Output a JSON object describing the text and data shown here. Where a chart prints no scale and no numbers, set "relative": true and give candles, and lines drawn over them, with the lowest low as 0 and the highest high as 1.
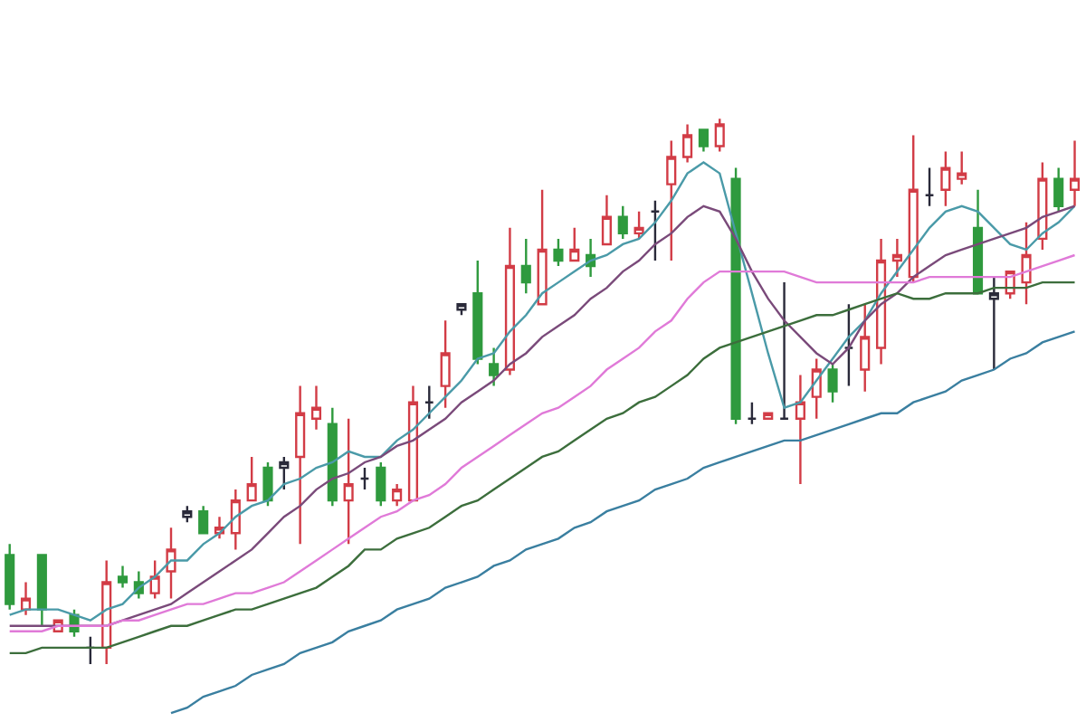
{
  "chart_data": {
    "type": "candlestick",
    "relative": true,
    "tick_labels": false,
    "categories": [
      null,
      null,
      null,
      null,
      null,
      null,
      null,
      null,
      null,
      null,
      null,
      null,
      null,
      null,
      null,
      null,
      null,
      null,
      null,
      null,
      null,
      null,
      null,
      null,
      null,
      null,
      null,
      null,
      null,
      null,
      null,
      null,
      null,
      null,
      null,
      null,
      null,
      null,
      null,
      null,
      null,
      null,
      null,
      null,
      null,
      null,
      null,
      null,
      null,
      null,
      null,
      null,
      null,
      null,
      null,
      null,
      null,
      null,
      null,
      null,
      null,
      null,
      null,
      null,
      null,
      null,
      null
    ],
    "ohlc": [
      [
        0.2,
        0.22,
        0.1,
        0.11
      ],
      [
        0.1,
        0.15,
        0.09,
        0.12
      ],
      [
        0.2,
        0.2,
        0.07,
        0.1
      ],
      [
        0.06,
        0.08,
        0.06,
        0.08
      ],
      [
        0.09,
        0.1,
        0.05,
        0.06
      ],
      [
        0.03,
        0.05,
        0.0,
        0.03
      ],
      [
        0.03,
        0.19,
        0.0,
        0.15
      ],
      [
        0.16,
        0.18,
        0.14,
        0.15
      ],
      [
        0.15,
        0.17,
        0.12,
        0.13
      ],
      [
        0.13,
        0.19,
        0.12,
        0.16
      ],
      [
        0.17,
        0.25,
        0.12,
        0.21
      ],
      [
        0.27,
        0.29,
        0.26,
        0.28
      ],
      [
        0.28,
        0.29,
        0.24,
        0.24
      ],
      [
        0.24,
        0.27,
        0.23,
        0.25
      ],
      [
        0.24,
        0.32,
        0.21,
        0.3
      ],
      [
        0.3,
        0.38,
        0.3,
        0.33
      ],
      [
        0.36,
        0.37,
        0.29,
        0.3
      ],
      [
        0.36,
        0.38,
        0.32,
        0.37
      ],
      [
        0.38,
        0.51,
        0.22,
        0.46
      ],
      [
        0.45,
        0.51,
        0.43,
        0.47
      ],
      [
        0.44,
        0.47,
        0.29,
        0.3
      ],
      [
        0.3,
        0.45,
        0.22,
        0.33
      ],
      [
        0.34,
        0.36,
        0.32,
        0.34
      ],
      [
        0.36,
        0.37,
        0.29,
        0.3
      ],
      [
        0.3,
        0.33,
        0.29,
        0.32
      ],
      [
        0.3,
        0.51,
        0.3,
        0.48
      ],
      [
        0.48,
        0.51,
        0.45,
        0.48
      ],
      [
        0.51,
        0.63,
        0.47,
        0.57
      ],
      [
        0.65,
        0.66,
        0.64,
        0.66
      ],
      [
        0.68,
        0.74,
        0.55,
        0.56
      ],
      [
        0.55,
        0.58,
        0.51,
        0.53
      ],
      [
        0.54,
        0.8,
        0.53,
        0.73
      ],
      [
        0.73,
        0.78,
        0.68,
        0.7
      ],
      [
        0.66,
        0.87,
        0.66,
        0.76
      ],
      [
        0.76,
        0.78,
        0.73,
        0.74
      ],
      [
        0.74,
        0.8,
        0.74,
        0.76
      ],
      [
        0.75,
        0.78,
        0.71,
        0.73
      ],
      [
        0.77,
        0.86,
        0.77,
        0.82
      ],
      [
        0.82,
        0.84,
        0.78,
        0.79
      ],
      [
        0.79,
        0.83,
        0.78,
        0.8
      ],
      [
        0.83,
        0.85,
        0.74,
        0.83
      ],
      [
        0.88,
        0.96,
        0.74,
        0.93
      ],
      [
        0.93,
        0.99,
        0.92,
        0.97
      ],
      [
        0.98,
        0.98,
        0.94,
        0.95
      ],
      [
        0.95,
        1.0,
        0.94,
        0.99
      ],
      [
        0.89,
        0.91,
        0.44,
        0.45
      ],
      [
        0.45,
        0.48,
        0.44,
        0.45
      ],
      [
        0.45,
        0.46,
        0.45,
        0.46
      ],
      [
        0.45,
        0.7,
        0.45,
        0.45
      ],
      [
        0.45,
        0.53,
        0.33,
        0.48
      ],
      [
        0.49,
        0.56,
        0.45,
        0.54
      ],
      [
        0.54,
        0.55,
        0.48,
        0.5
      ],
      [
        0.58,
        0.66,
        0.51,
        0.58
      ],
      [
        0.54,
        0.66,
        0.5,
        0.6
      ],
      [
        0.58,
        0.78,
        0.55,
        0.74
      ],
      [
        0.74,
        0.78,
        0.71,
        0.75
      ],
      [
        0.71,
        0.97,
        0.7,
        0.87
      ],
      [
        0.86,
        0.91,
        0.84,
        0.86
      ],
      [
        0.87,
        0.94,
        0.84,
        0.91
      ],
      [
        0.89,
        0.94,
        0.88,
        0.9
      ],
      [
        0.8,
        0.87,
        0.68,
        0.68
      ],
      [
        0.67,
        0.71,
        0.54,
        0.68
      ],
      [
        0.68,
        0.72,
        0.67,
        0.72
      ],
      [
        0.7,
        0.81,
        0.66,
        0.75
      ],
      [
        0.78,
        0.92,
        0.76,
        0.89
      ],
      [
        0.89,
        0.91,
        0.83,
        0.84
      ],
      [
        0.87,
        0.96,
        0.84,
        0.89
      ]
    ],
    "colors": [
      "#2f9a3e",
      "#d23c46",
      "#2f9a3e",
      "#d23c46",
      "#2f9a3e",
      "#2a2a3a",
      "#d23c46",
      "#2f9a3e",
      "#2f9a3e",
      "#d23c46",
      "#d23c46",
      "#2a2a3a",
      "#2f9a3e",
      "#d23c46",
      "#d23c46",
      "#d23c46",
      "#2f9a3e",
      "#2a2a3a",
      "#d23c46",
      "#d23c46",
      "#2f9a3e",
      "#d23c46",
      "#2a2a3a",
      "#2f9a3e",
      "#d23c46",
      "#d23c46",
      "#2a2a3a",
      "#d23c46",
      "#2a2a3a",
      "#2f9a3e",
      "#2f9a3e",
      "#d23c46",
      "#2f9a3e",
      "#d23c46",
      "#2f9a3e",
      "#d23c46",
      "#2f9a3e",
      "#d23c46",
      "#2f9a3e",
      "#d23c46",
      "#2a2a3a",
      "#d23c46",
      "#d23c46",
      "#2f9a3e",
      "#d23c46",
      "#2f9a3e",
      "#2a2a3a",
      "#d23c46",
      "#2a2a3a",
      "#d23c46",
      "#d23c46",
      "#2f9a3e",
      "#2a2a3a",
      "#d23c46",
      "#d23c46",
      "#d23c46",
      "#d23c46",
      "#2a2a3a",
      "#d23c46",
      "#d23c46",
      "#2f9a3e",
      "#2a2a3a",
      "#d23c46",
      "#d23c46",
      "#d23c46",
      "#2f9a3e",
      "#d23c46"
    ],
    "series": [
      {
        "type": "line",
        "color": "#4a9aa8",
        "values": [
          0.09,
          0.1,
          0.1,
          0.1,
          0.09,
          0.08,
          0.1,
          0.11,
          0.14,
          0.16,
          0.19,
          0.19,
          0.22,
          0.24,
          0.27,
          0.29,
          0.3,
          0.33,
          0.34,
          0.36,
          0.37,
          0.39,
          0.38,
          0.38,
          0.41,
          0.43,
          0.46,
          0.49,
          0.52,
          0.56,
          0.57,
          0.61,
          0.64,
          0.68,
          0.7,
          0.72,
          0.74,
          0.75,
          0.77,
          0.78,
          0.81,
          0.85,
          0.9,
          0.92,
          0.9,
          0.79,
          0.68,
          0.57,
          0.47,
          0.48,
          0.52,
          0.56,
          0.6,
          0.63,
          0.68,
          0.72,
          0.76,
          0.8,
          0.83,
          0.84,
          0.83,
          0.8,
          0.77,
          0.76,
          0.79,
          0.81,
          0.84
        ]
      },
      {
        "type": "line",
        "color": "#7a4a7a",
        "values": [
          0.07,
          0.07,
          0.07,
          0.07,
          0.07,
          0.07,
          0.07,
          0.08,
          0.09,
          0.1,
          0.11,
          0.13,
          0.15,
          0.17,
          0.19,
          0.21,
          0.24,
          0.27,
          0.29,
          0.32,
          0.34,
          0.35,
          0.37,
          0.38,
          0.4,
          0.41,
          0.43,
          0.45,
          0.48,
          0.5,
          0.52,
          0.55,
          0.57,
          0.6,
          0.62,
          0.64,
          0.67,
          0.69,
          0.72,
          0.74,
          0.77,
          0.79,
          0.82,
          0.84,
          0.83,
          0.78,
          0.72,
          0.67,
          0.63,
          0.6,
          0.57,
          0.55,
          0.58,
          0.63,
          0.66,
          0.68,
          0.71,
          0.73,
          0.75,
          0.76,
          0.77,
          0.78,
          0.79,
          0.8,
          0.82,
          0.83,
          0.84
        ]
      },
      {
        "type": "line",
        "color": "#e07ad8",
        "values": [
          0.06,
          0.06,
          0.06,
          0.07,
          0.07,
          0.07,
          0.07,
          0.08,
          0.08,
          0.09,
          0.1,
          0.11,
          0.11,
          0.12,
          0.13,
          0.13,
          0.14,
          0.15,
          0.17,
          0.19,
          0.21,
          0.23,
          0.25,
          0.27,
          0.28,
          0.3,
          0.31,
          0.33,
          0.36,
          0.38,
          0.4,
          0.42,
          0.44,
          0.46,
          0.47,
          0.49,
          0.51,
          0.54,
          0.56,
          0.58,
          0.61,
          0.63,
          0.67,
          0.7,
          0.72,
          0.72,
          0.72,
          0.72,
          0.72,
          0.71,
          0.7,
          0.7,
          0.7,
          0.7,
          0.7,
          0.7,
          0.7,
          0.71,
          0.71,
          0.71,
          0.71,
          0.71,
          0.71,
          0.72,
          0.73,
          0.74,
          0.75
        ]
      },
      {
        "type": "line",
        "color": "#3c6e3c",
        "values": [
          0.02,
          0.02,
          0.03,
          0.03,
          0.03,
          0.03,
          0.03,
          0.04,
          0.05,
          0.06,
          0.07,
          0.07,
          0.08,
          0.09,
          0.1,
          0.1,
          0.11,
          0.12,
          0.13,
          0.14,
          0.16,
          0.18,
          0.21,
          0.21,
          0.23,
          0.24,
          0.25,
          0.27,
          0.29,
          0.3,
          0.32,
          0.34,
          0.36,
          0.38,
          0.39,
          0.41,
          0.43,
          0.45,
          0.46,
          0.48,
          0.49,
          0.51,
          0.53,
          0.56,
          0.58,
          0.59,
          0.6,
          0.61,
          0.62,
          0.63,
          0.64,
          0.64,
          0.65,
          0.66,
          0.67,
          0.68,
          0.67,
          0.67,
          0.68,
          0.68,
          0.68,
          0.69,
          0.69,
          0.69,
          0.7,
          0.7,
          0.7
        ]
      },
      {
        "type": "line",
        "color": "#3a7fa0",
        "values": [
          null,
          null,
          null,
          null,
          null,
          null,
          null,
          null,
          null,
          null,
          -0.09,
          -0.08,
          -0.06,
          -0.05,
          -0.04,
          -0.02,
          -0.01,
          0.0,
          0.02,
          0.03,
          0.04,
          0.06,
          0.07,
          0.08,
          0.1,
          0.11,
          0.12,
          0.14,
          0.15,
          0.16,
          0.18,
          0.19,
          0.21,
          0.22,
          0.23,
          0.25,
          0.26,
          0.28,
          0.29,
          0.3,
          0.32,
          0.33,
          0.34,
          0.36,
          0.37,
          0.38,
          0.39,
          0.4,
          0.41,
          0.41,
          0.42,
          0.43,
          0.44,
          0.45,
          0.46,
          0.46,
          0.48,
          0.49,
          0.5,
          0.52,
          0.53,
          0.54,
          0.56,
          0.57,
          0.59,
          0.6,
          0.61
        ]
      }
    ]
  }
}
